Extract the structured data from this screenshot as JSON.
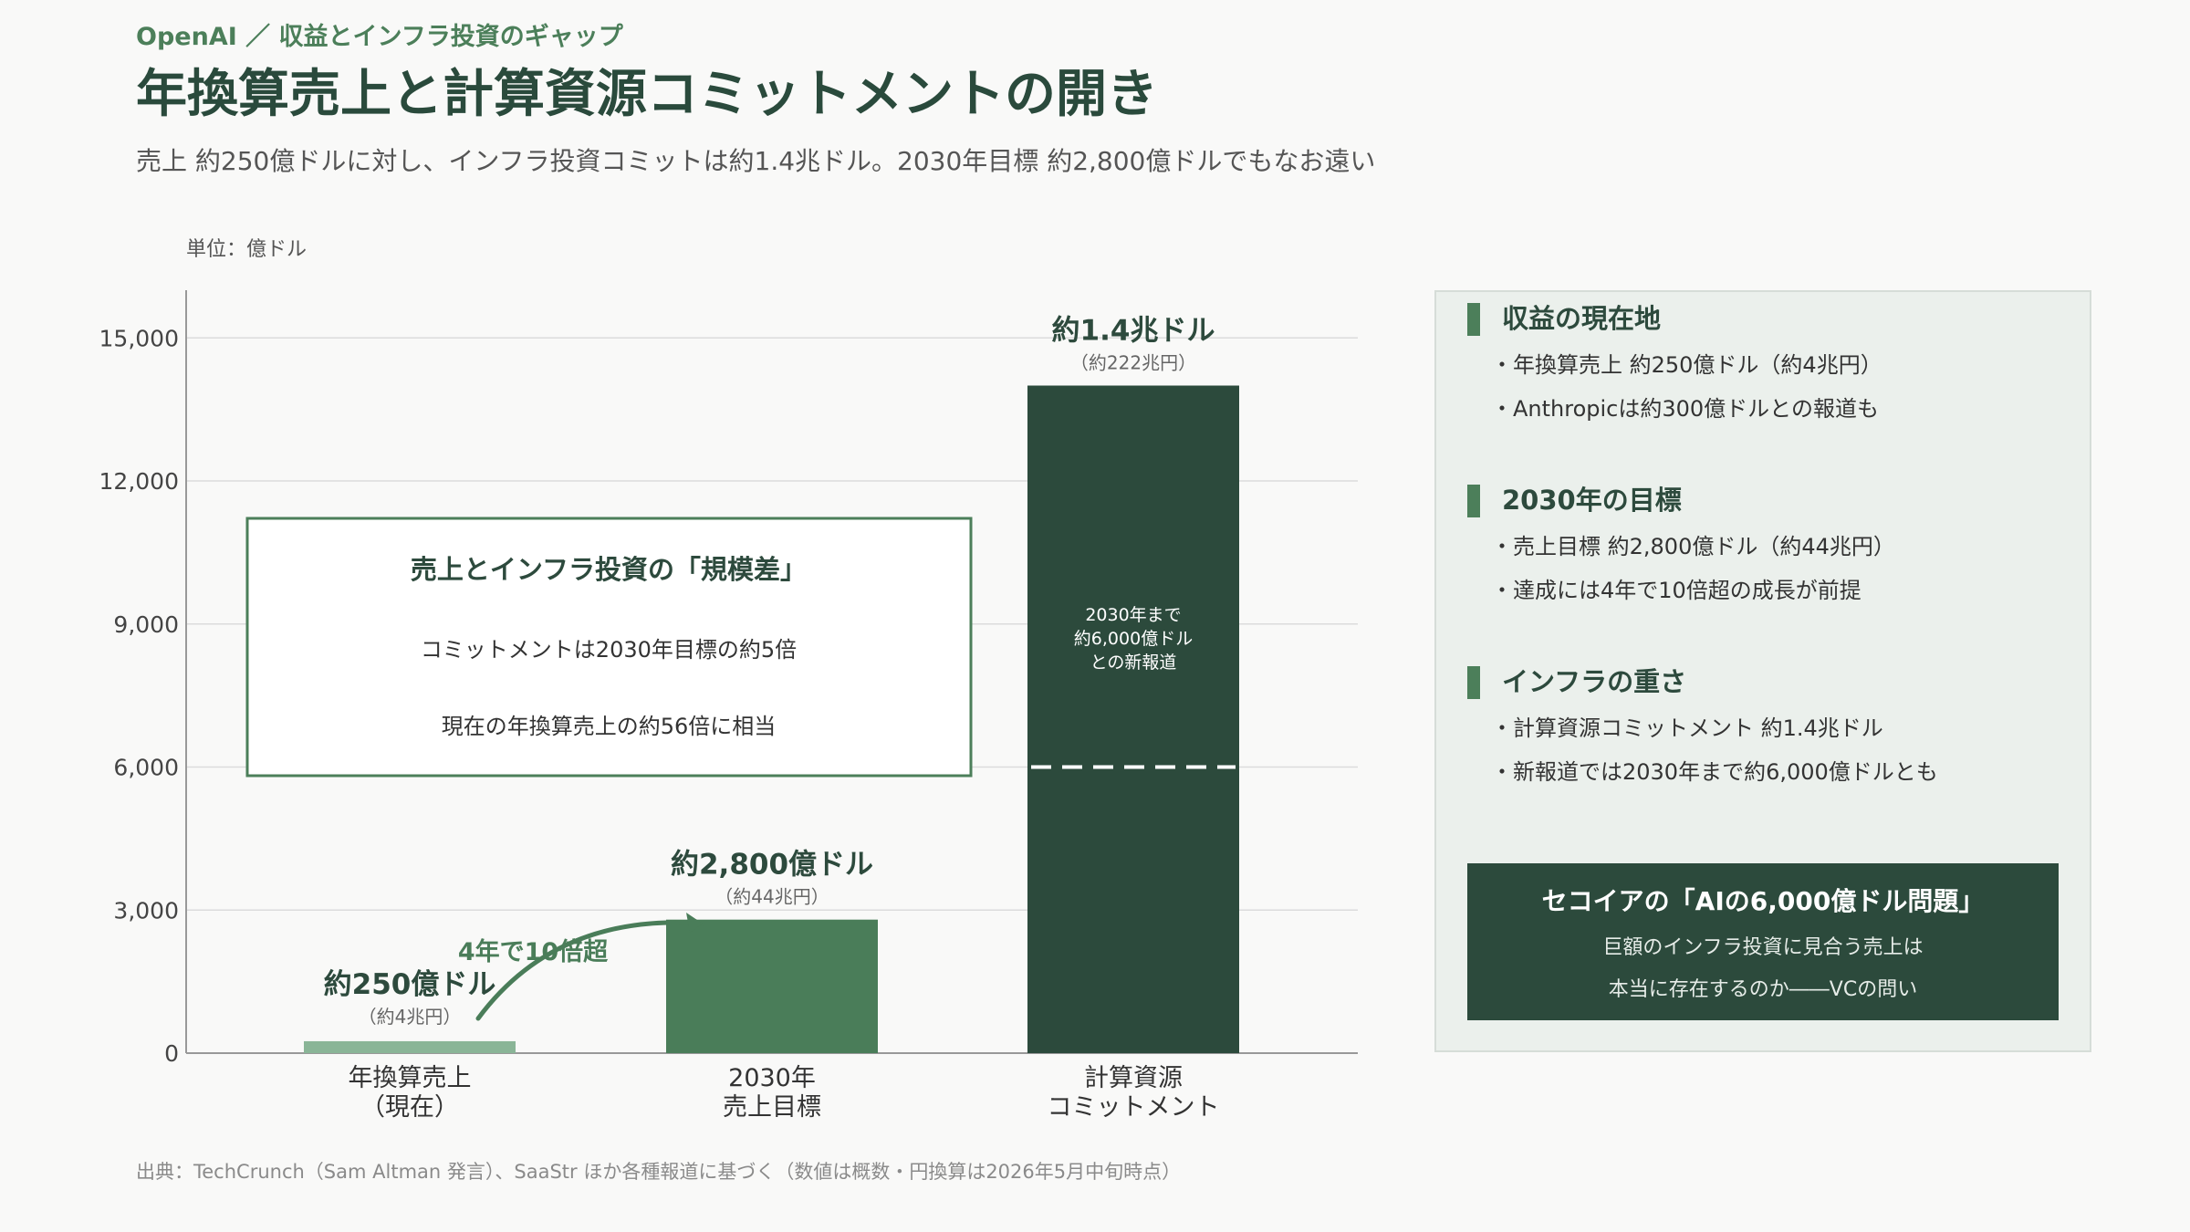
{
  "header": {
    "eyebrow": "OpenAI ／ 収益とインフラ投資のギャップ",
    "title": "年換算売上と計算資源コミットメントの開き",
    "subtitle": "売上 約250億ドルに対し、インフラ投資コミットは約1.4兆ドル。2030年目標 約2,800億ドルでもなお遠い"
  },
  "chart_data": {
    "type": "bar",
    "unit_label": "単位：億ドル",
    "ylim": [
      0,
      16000
    ],
    "yticks": [
      "0",
      "3,000",
      "6,000",
      "9,000",
      "12,000",
      "15,000"
    ],
    "ytick_values": [
      0,
      3000,
      6000,
      9000,
      12000,
      15000
    ],
    "grid": true,
    "categories": [
      {
        "line1": "年換算売上",
        "line2": "（現在）"
      },
      {
        "line1": "2030年",
        "line2": "売上目標"
      },
      {
        "line1": "計算資源",
        "line2": "コミットメント"
      }
    ],
    "values": [
      250,
      2800,
      14000
    ],
    "colors": [
      "#8ab597",
      "#4a7d59",
      "#2c4a3c"
    ],
    "value_labels": [
      "約250億ドル",
      "約2,800億ドル",
      "約1.4兆ドル"
    ],
    "value_sublabels": [
      "（約4兆円）",
      "（約44兆円）",
      "（約222兆円）"
    ],
    "dashed_line_value": 6000,
    "bar_annotation": [
      "2030年まで",
      "約6,000億ドル",
      "との新報道"
    ],
    "growth_arrow_label": "4年で10倍超",
    "box": {
      "title": "売上とインフラ投資の「規模差」",
      "line1": "コミットメントは2030年目標の約5倍",
      "line2": "現在の年換算売上の約56倍に相当"
    }
  },
  "panel": {
    "sections": [
      {
        "title": "収益の現在地",
        "items": [
          "・年換算売上 約250億ドル（約4兆円）",
          "・Anthropicは約300億ドルとの報道も"
        ]
      },
      {
        "title": "2030年の目標",
        "items": [
          "・売上目標 約2,800億ドル（約44兆円）",
          "・達成には4年で10倍超の成長が前提"
        ]
      },
      {
        "title": "インフラの重さ",
        "items": [
          "・計算資源コミットメント 約1.4兆ドル",
          "・新報道では2030年まで約6,000億ドルとも"
        ]
      }
    ],
    "callout": {
      "title": "セコイアの「AIの6,000億ドル問題」",
      "line1": "巨額のインフラ投資に見合う売上は",
      "line2": "本当に存在するのか――VCの問い"
    },
    "colors": {
      "accent": "#4c7f5a",
      "dark": "#2c4a3c",
      "panel_bg": "#ebf0ec"
    }
  },
  "footer": {
    "source": "出典：TechCrunch（Sam Altman 発言）、SaaStr ほか各種報道に基づく（数値は概数・円換算は2026年5月中旬時点）"
  }
}
